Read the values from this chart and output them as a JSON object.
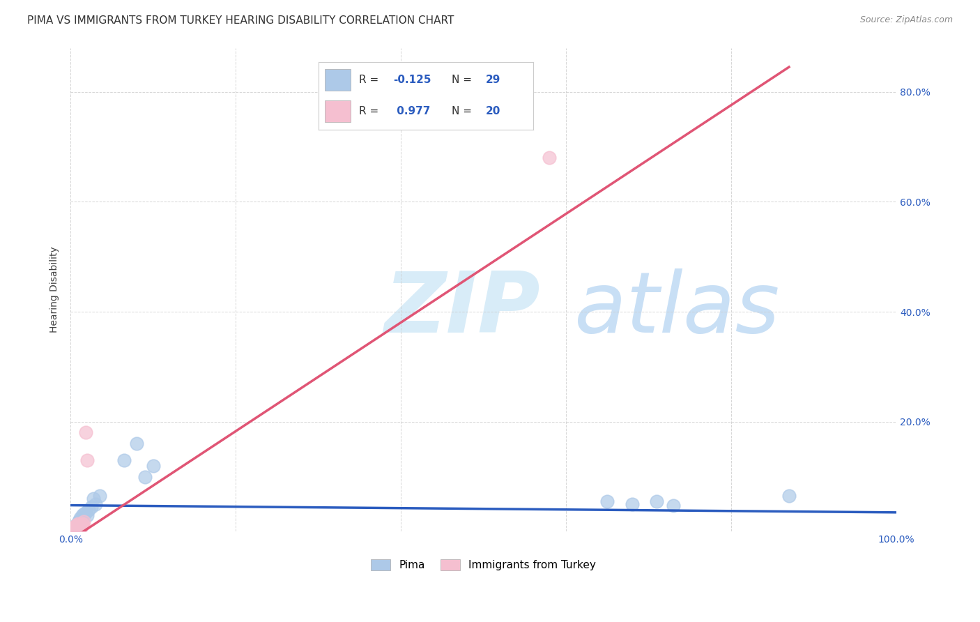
{
  "title": "PIMA VS IMMIGRANTS FROM TURKEY HEARING DISABILITY CORRELATION CHART",
  "source": "Source: ZipAtlas.com",
  "ylabel": "Hearing Disability",
  "xlim": [
    0.0,
    1.0
  ],
  "ylim": [
    0.0,
    0.88
  ],
  "xticks": [
    0.0,
    0.2,
    0.4,
    0.6,
    0.8,
    1.0
  ],
  "xticklabels": [
    "0.0%",
    "",
    "",
    "",
    "",
    "100.0%"
  ],
  "yticks": [
    0.0,
    0.2,
    0.4,
    0.6,
    0.8
  ],
  "yticklabels": [
    "",
    "20.0%",
    "40.0%",
    "60.0%",
    "80.0%"
  ],
  "legend_labels": [
    "Pima",
    "Immigrants from Turkey"
  ],
  "pima_color": "#adc9e8",
  "turkey_color": "#f5bfd0",
  "pima_line_color": "#2b5cbf",
  "turkey_line_color": "#e05575",
  "watermark_zip": "ZIP",
  "watermark_atlas": "atlas",
  "watermark_color": "#d8ecf8",
  "pima_scatter_x": [
    0.003,
    0.004,
    0.006,
    0.007,
    0.008,
    0.009,
    0.01,
    0.011,
    0.012,
    0.013,
    0.014,
    0.015,
    0.016,
    0.018,
    0.02,
    0.022,
    0.025,
    0.028,
    0.03,
    0.035,
    0.065,
    0.08,
    0.09,
    0.1,
    0.65,
    0.68,
    0.71,
    0.73,
    0.87
  ],
  "pima_scatter_y": [
    0.005,
    0.01,
    0.008,
    0.012,
    0.015,
    0.012,
    0.02,
    0.018,
    0.025,
    0.022,
    0.03,
    0.025,
    0.032,
    0.035,
    0.03,
    0.04,
    0.045,
    0.06,
    0.05,
    0.065,
    0.13,
    0.16,
    0.1,
    0.12,
    0.055,
    0.05,
    0.055,
    0.048,
    0.065
  ],
  "turkey_scatter_x": [
    0.002,
    0.003,
    0.004,
    0.005,
    0.005,
    0.006,
    0.007,
    0.007,
    0.008,
    0.009,
    0.01,
    0.011,
    0.012,
    0.013,
    0.014,
    0.015,
    0.016,
    0.018,
    0.02,
    0.58
  ],
  "turkey_scatter_y": [
    0.005,
    0.007,
    0.005,
    0.008,
    0.01,
    0.008,
    0.012,
    0.01,
    0.012,
    0.015,
    0.01,
    0.008,
    0.012,
    0.01,
    0.015,
    0.013,
    0.018,
    0.18,
    0.13,
    0.68
  ],
  "pima_trend_x": [
    0.0,
    1.0
  ],
  "pima_trend_y": [
    0.048,
    0.035
  ],
  "turkey_trend_x": [
    0.0,
    0.87
  ],
  "turkey_trend_y": [
    -0.015,
    0.845
  ],
  "title_fontsize": 11,
  "axis_label_fontsize": 10,
  "tick_fontsize": 10,
  "legend_r1": "R = -0.125",
  "legend_r2": "R =  0.977",
  "legend_n1": "N = 29",
  "legend_n2": "N = 20",
  "background_color": "#ffffff",
  "grid_color": "#cccccc"
}
